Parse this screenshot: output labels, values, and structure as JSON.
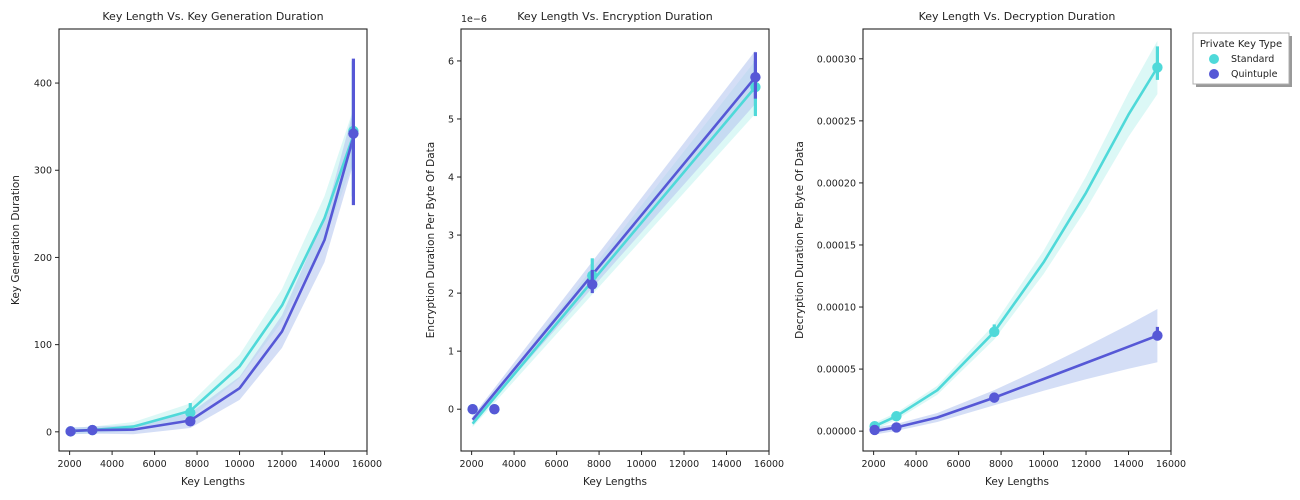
{
  "legend": {
    "title": "Private Key Type",
    "entries": [
      {
        "name": "Standard",
        "color": "#4fd9d9"
      },
      {
        "name": "Quintuple",
        "color": "#5658d6"
      }
    ],
    "placement": "outside-top-right"
  },
  "chart_data": [
    {
      "type": "line",
      "title": "Key Length Vs. Key Generation Duration",
      "xlabel": "Key Lengths",
      "ylabel": "Key Generation Duration",
      "xlim": [
        1500,
        16000
      ],
      "ylim": [
        -22,
        462
      ],
      "xticks": [
        2000,
        4000,
        6000,
        8000,
        10000,
        12000,
        14000,
        16000
      ],
      "yticks": [
        0,
        100,
        200,
        300,
        400
      ],
      "ytick_labels": [
        "0",
        "100",
        "200",
        "300",
        "400"
      ],
      "y_offset_label": "",
      "grid": false,
      "series": [
        {
          "name": "Standard",
          "color": "#4fd9d9",
          "points": [
            {
              "x": 2048,
              "y": 0.5,
              "lo": 0.3,
              "hi": 0.8
            },
            {
              "x": 3072,
              "y": 2,
              "lo": 1.5,
              "hi": 2.8
            },
            {
              "x": 7680,
              "y": 22,
              "lo": 15,
              "hi": 33
            },
            {
              "x": 15360,
              "y": 345,
              "lo": 270,
              "hi": 425
            }
          ],
          "fit": [
            [
              2048,
              1
            ],
            [
              3072,
              2
            ],
            [
              5000,
              6
            ],
            [
              7680,
              24
            ],
            [
              10000,
              75
            ],
            [
              12000,
              145
            ],
            [
              14000,
              245
            ],
            [
              15360,
              340
            ]
          ]
        },
        {
          "name": "Quintuple",
          "color": "#5658d6",
          "points": [
            {
              "x": 2048,
              "y": 0.5,
              "lo": 0.3,
              "hi": 0.7
            },
            {
              "x": 3072,
              "y": 2,
              "lo": 1.5,
              "hi": 2.5
            },
            {
              "x": 7680,
              "y": 12,
              "lo": 9,
              "hi": 16
            },
            {
              "x": 15360,
              "y": 342,
              "lo": 260,
              "hi": 428
            }
          ],
          "fit": [
            [
              2048,
              1
            ],
            [
              3072,
              2
            ],
            [
              5000,
              2.5
            ],
            [
              7680,
              13
            ],
            [
              10000,
              50
            ],
            [
              12000,
              115
            ],
            [
              14000,
              220
            ],
            [
              15360,
              338
            ]
          ]
        }
      ]
    },
    {
      "type": "line",
      "title": "Key Length Vs. Encryption Duration",
      "xlabel": "Key Lengths",
      "ylabel": "Encryption Duration Per Byte Of Data",
      "xlim": [
        1500,
        16000
      ],
      "ylim": [
        -0.72,
        6.55
      ],
      "xticks": [
        2000,
        4000,
        6000,
        8000,
        10000,
        12000,
        14000,
        16000
      ],
      "yticks": [
        0,
        1,
        2,
        3,
        4,
        5,
        6
      ],
      "ytick_labels": [
        "0",
        "1",
        "2",
        "3",
        "4",
        "5",
        "6"
      ],
      "y_offset_label": "1e−6",
      "grid": false,
      "series": [
        {
          "name": "Standard",
          "color": "#4fd9d9",
          "points": [
            {
              "x": 2048,
              "y": 0.0,
              "lo": -0.02,
              "hi": 0.02
            },
            {
              "x": 3072,
              "y": 0.0,
              "lo": -0.02,
              "hi": 0.02
            },
            {
              "x": 7680,
              "y": 2.3,
              "lo": 2.1,
              "hi": 2.6
            },
            {
              "x": 15360,
              "y": 5.55,
              "lo": 5.05,
              "hi": 6.0
            }
          ],
          "fit": [
            [
              2048,
              -0.25
            ],
            [
              15360,
              5.55
            ]
          ]
        },
        {
          "name": "Quintuple",
          "color": "#5658d6",
          "points": [
            {
              "x": 2048,
              "y": 0.0,
              "lo": -0.02,
              "hi": 0.02
            },
            {
              "x": 3072,
              "y": 0.0,
              "lo": -0.02,
              "hi": 0.02
            },
            {
              "x": 7680,
              "y": 2.15,
              "lo": 2.0,
              "hi": 2.4
            },
            {
              "x": 15360,
              "y": 5.72,
              "lo": 5.35,
              "hi": 6.15
            }
          ],
          "fit": [
            [
              2048,
              -0.18
            ],
            [
              15360,
              5.72
            ]
          ]
        }
      ]
    },
    {
      "type": "line",
      "title": "Key Length Vs. Decryption Duration",
      "xlabel": "Key Lengths",
      "ylabel": "Decryption Duration Per Byte Of Data",
      "xlim": [
        1500,
        16000
      ],
      "ylim": [
        -1.6e-05,
        0.000324
      ],
      "xticks": [
        2000,
        4000,
        6000,
        8000,
        10000,
        12000,
        14000,
        16000
      ],
      "yticks": [
        0,
        5e-05,
        0.0001,
        0.00015,
        0.0002,
        0.00025,
        0.0003
      ],
      "ytick_labels": [
        "0.00000",
        "0.00005",
        "0.00010",
        "0.00015",
        "0.00020",
        "0.00025",
        "0.00030"
      ],
      "y_offset_label": "",
      "grid": false,
      "series": [
        {
          "name": "Standard",
          "color": "#4fd9d9",
          "points": [
            {
              "x": 2048,
              "y": 4e-06,
              "lo": 3.5e-06,
              "hi": 4.5e-06
            },
            {
              "x": 3072,
              "y": 1.2e-05,
              "lo": 1.1e-05,
              "hi": 1.3e-05
            },
            {
              "x": 7680,
              "y": 8e-05,
              "lo": 7.6e-05,
              "hi": 8.6e-05
            },
            {
              "x": 15360,
              "y": 0.000293,
              "lo": 0.000283,
              "hi": 0.00031
            }
          ],
          "fit": [
            [
              2048,
              4e-06
            ],
            [
              3072,
              1.2e-05
            ],
            [
              5000,
              3.3e-05
            ],
            [
              7680,
              8e-05
            ],
            [
              10000,
              0.000136
            ],
            [
              12000,
              0.000192
            ],
            [
              14000,
              0.000255
            ],
            [
              15360,
              0.000293
            ]
          ]
        },
        {
          "name": "Quintuple",
          "color": "#5658d6",
          "points": [
            {
              "x": 2048,
              "y": 1e-06,
              "lo": 8e-07,
              "hi": 1.2e-06
            },
            {
              "x": 3072,
              "y": 3e-06,
              "lo": 2.7e-06,
              "hi": 3.3e-06
            },
            {
              "x": 7680,
              "y": 2.7e-05,
              "lo": 2.6e-05,
              "hi": 2.8e-05
            },
            {
              "x": 15360,
              "y": 7.7e-05,
              "lo": 7.3e-05,
              "hi": 8.4e-05
            }
          ],
          "fit": [
            [
              2048,
              0.0
            ],
            [
              3072,
              3e-06
            ],
            [
              5000,
              1.1e-05
            ],
            [
              7680,
              2.7e-05
            ],
            [
              10000,
              4.2e-05
            ],
            [
              12000,
              5.5e-05
            ],
            [
              14000,
              6.8e-05
            ],
            [
              15360,
              7.7e-05
            ]
          ]
        }
      ]
    }
  ]
}
